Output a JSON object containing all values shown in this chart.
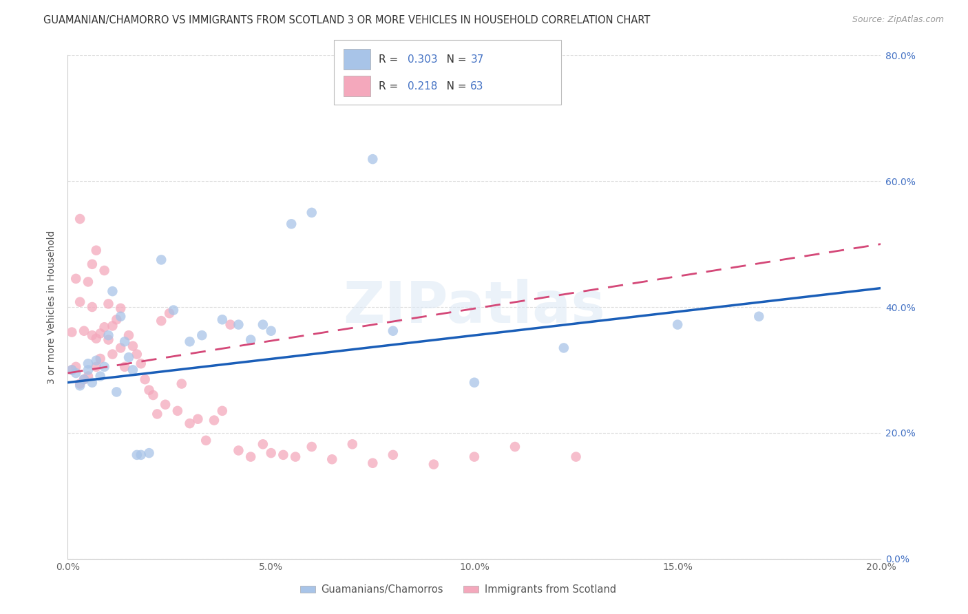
{
  "title": "GUAMANIAN/CHAMORRO VS IMMIGRANTS FROM SCOTLAND 3 OR MORE VEHICLES IN HOUSEHOLD CORRELATION CHART",
  "source": "Source: ZipAtlas.com",
  "ylabel": "3 or more Vehicles in Household",
  "blue_R": 0.303,
  "blue_N": 37,
  "pink_R": 0.218,
  "pink_N": 63,
  "blue_color": "#a8c4e8",
  "pink_color": "#f4a8bc",
  "blue_line_color": "#1a5eb8",
  "pink_line_color": "#d44878",
  "xlim": [
    0.0,
    0.2
  ],
  "ylim": [
    0.0,
    0.8
  ],
  "xticks": [
    0.0,
    0.05,
    0.1,
    0.15,
    0.2
  ],
  "yticks": [
    0.0,
    0.2,
    0.4,
    0.6,
    0.8
  ],
  "legend_labels": [
    "Guamanians/Chamorros",
    "Immigrants from Scotland"
  ],
  "watermark": "ZIPatlas",
  "blue_x": [
    0.001,
    0.002,
    0.003,
    0.004,
    0.005,
    0.005,
    0.006,
    0.007,
    0.008,
    0.009,
    0.01,
    0.011,
    0.012,
    0.013,
    0.014,
    0.015,
    0.016,
    0.017,
    0.018,
    0.02,
    0.023,
    0.026,
    0.03,
    0.033,
    0.038,
    0.042,
    0.045,
    0.048,
    0.05,
    0.055,
    0.06,
    0.075,
    0.08,
    0.1,
    0.122,
    0.15,
    0.17
  ],
  "blue_y": [
    0.3,
    0.295,
    0.275,
    0.285,
    0.3,
    0.31,
    0.28,
    0.315,
    0.29,
    0.305,
    0.355,
    0.425,
    0.265,
    0.385,
    0.345,
    0.32,
    0.3,
    0.165,
    0.165,
    0.168,
    0.475,
    0.395,
    0.345,
    0.355,
    0.38,
    0.372,
    0.348,
    0.372,
    0.362,
    0.532,
    0.55,
    0.635,
    0.362,
    0.28,
    0.335,
    0.372,
    0.385
  ],
  "pink_x": [
    0.001,
    0.001,
    0.002,
    0.002,
    0.003,
    0.003,
    0.003,
    0.004,
    0.004,
    0.005,
    0.005,
    0.006,
    0.006,
    0.006,
    0.007,
    0.007,
    0.007,
    0.008,
    0.008,
    0.009,
    0.009,
    0.01,
    0.01,
    0.011,
    0.011,
    0.012,
    0.013,
    0.013,
    0.014,
    0.015,
    0.016,
    0.017,
    0.018,
    0.019,
    0.02,
    0.021,
    0.022,
    0.023,
    0.024,
    0.025,
    0.027,
    0.028,
    0.03,
    0.032,
    0.034,
    0.036,
    0.038,
    0.04,
    0.042,
    0.045,
    0.048,
    0.05,
    0.053,
    0.056,
    0.06,
    0.065,
    0.07,
    0.075,
    0.08,
    0.09,
    0.1,
    0.11,
    0.125
  ],
  "pink_y": [
    0.3,
    0.36,
    0.305,
    0.445,
    0.278,
    0.408,
    0.54,
    0.285,
    0.362,
    0.29,
    0.44,
    0.355,
    0.4,
    0.468,
    0.305,
    0.35,
    0.49,
    0.318,
    0.358,
    0.368,
    0.458,
    0.348,
    0.405,
    0.37,
    0.325,
    0.38,
    0.335,
    0.398,
    0.305,
    0.355,
    0.338,
    0.325,
    0.31,
    0.285,
    0.268,
    0.26,
    0.23,
    0.378,
    0.245,
    0.39,
    0.235,
    0.278,
    0.215,
    0.222,
    0.188,
    0.22,
    0.235,
    0.372,
    0.172,
    0.162,
    0.182,
    0.168,
    0.165,
    0.162,
    0.178,
    0.158,
    0.182,
    0.152,
    0.165,
    0.15,
    0.162,
    0.178,
    0.162
  ]
}
